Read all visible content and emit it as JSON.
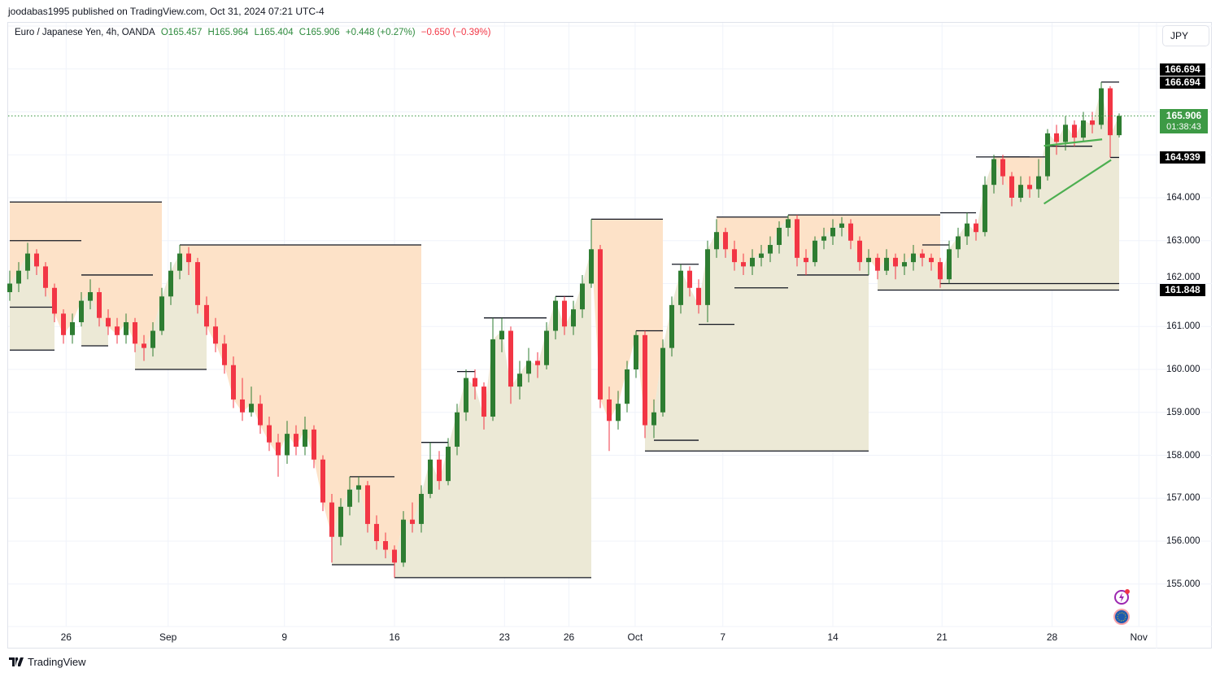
{
  "header": {
    "published": "joodabas1995 published on TradingView.com, Oct 31, 2024 07:21 UTC-4",
    "symbol": "Euro / Japanese Yen, 4h, OANDA",
    "open": "O165.457",
    "high": "H165.964",
    "low": "L165.404",
    "close": "C165.906",
    "change": "+0.448 (+0.27%)",
    "change2": "−0.650 (−0.39%)"
  },
  "currency_button": "JPY",
  "price_labels": {
    "high1": "166.694",
    "high2": "166.694",
    "last": "165.906",
    "countdown": "01:38:43",
    "low_a": "164.939",
    "low_b": "161.848"
  },
  "footer": {
    "brand": "TradingView"
  },
  "icons": [
    "lightning-icon",
    "eu-flag-icon",
    "tradingview-logo-icon"
  ],
  "colors": {
    "up": "#2e7d32",
    "down": "#f23645",
    "resistance_zone": "#fde2c8",
    "support_zone": "#ece9d6",
    "level_line": "#131722",
    "wedge": "#4caf50",
    "last_price": "#3d9a45"
  },
  "chart_data": {
    "type": "candlestick",
    "symbol": "EURJPY",
    "interval": "4h",
    "ylim": [
      154.5,
      168.5
    ],
    "y_ticks": [
      "155.000",
      "156.000",
      "157.000",
      "158.000",
      "159.000",
      "160.000",
      "161.000",
      "162.000",
      "163.000",
      "164.000"
    ],
    "x_ticks": [
      {
        "label": "26",
        "bar": 6.3
      },
      {
        "label": "Sep",
        "bar": 17.7
      },
      {
        "label": "9",
        "bar": 30.7
      },
      {
        "label": "16",
        "bar": 43
      },
      {
        "label": "23",
        "bar": 55.3
      },
      {
        "label": "26",
        "bar": 62.5
      },
      {
        "label": "Oct",
        "bar": 69.9
      },
      {
        "label": "7",
        "bar": 79.7
      },
      {
        "label": "14",
        "bar": 92
      },
      {
        "label": "21",
        "bar": 104.2
      },
      {
        "label": "28",
        "bar": 116.5
      },
      {
        "label": "Nov",
        "bar": 126.2
      }
    ],
    "grid": true,
    "last_price": 165.906,
    "candles_ohlc": [
      [
        161.8,
        162.3,
        161.6,
        162.0
      ],
      [
        162.0,
        162.5,
        161.8,
        162.3
      ],
      [
        162.3,
        162.95,
        162.1,
        162.7
      ],
      [
        162.7,
        162.8,
        162.2,
        162.4
      ],
      [
        162.4,
        162.5,
        161.7,
        161.9
      ],
      [
        161.9,
        162.0,
        161.1,
        161.3
      ],
      [
        161.3,
        161.4,
        160.6,
        160.8
      ],
      [
        160.8,
        161.3,
        160.6,
        161.1
      ],
      [
        161.1,
        161.8,
        161.0,
        161.6
      ],
      [
        161.6,
        162.1,
        161.4,
        161.8
      ],
      [
        161.8,
        161.9,
        161.0,
        161.2
      ],
      [
        161.2,
        161.4,
        160.8,
        161.0
      ],
      [
        161.0,
        161.2,
        160.6,
        160.8
      ],
      [
        160.8,
        161.3,
        160.6,
        161.1
      ],
      [
        161.1,
        161.2,
        160.4,
        160.6
      ],
      [
        160.6,
        160.8,
        160.2,
        160.5
      ],
      [
        160.5,
        161.1,
        160.3,
        160.9
      ],
      [
        160.9,
        161.9,
        160.8,
        161.7
      ],
      [
        161.7,
        162.5,
        161.5,
        162.3
      ],
      [
        162.3,
        162.9,
        162.1,
        162.7
      ],
      [
        162.7,
        162.85,
        162.2,
        162.5
      ],
      [
        162.5,
        162.6,
        161.3,
        161.5
      ],
      [
        161.5,
        161.7,
        160.8,
        161.0
      ],
      [
        161.0,
        161.2,
        160.4,
        160.6
      ],
      [
        160.6,
        160.8,
        159.9,
        160.1
      ],
      [
        160.1,
        160.3,
        159.1,
        159.3
      ],
      [
        159.3,
        159.8,
        158.8,
        159.0
      ],
      [
        159.0,
        159.6,
        158.9,
        159.2
      ],
      [
        159.2,
        159.4,
        158.5,
        158.7
      ],
      [
        158.7,
        158.9,
        158.1,
        158.3
      ],
      [
        158.3,
        158.5,
        157.5,
        158.0
      ],
      [
        158.0,
        158.8,
        157.8,
        158.5
      ],
      [
        158.5,
        158.7,
        158.0,
        158.2
      ],
      [
        158.2,
        158.9,
        158.0,
        158.6
      ],
      [
        158.6,
        158.7,
        157.7,
        157.9
      ],
      [
        157.9,
        158.0,
        156.7,
        156.9
      ],
      [
        156.9,
        157.1,
        155.5,
        156.1
      ],
      [
        156.1,
        157.0,
        155.9,
        156.8
      ],
      [
        156.8,
        157.5,
        156.6,
        157.2
      ],
      [
        157.2,
        157.5,
        156.9,
        157.3
      ],
      [
        157.3,
        157.4,
        156.2,
        156.4
      ],
      [
        156.4,
        156.6,
        155.8,
        156.0
      ],
      [
        156.0,
        156.2,
        155.6,
        155.8
      ],
      [
        155.8,
        155.9,
        155.15,
        155.5
      ],
      [
        155.5,
        156.7,
        155.4,
        156.5
      ],
      [
        156.5,
        156.9,
        156.2,
        156.4
      ],
      [
        156.4,
        157.3,
        156.2,
        157.1
      ],
      [
        157.1,
        158.3,
        157.0,
        157.9
      ],
      [
        157.9,
        158.1,
        157.2,
        157.4
      ],
      [
        157.4,
        158.4,
        157.3,
        158.2
      ],
      [
        158.2,
        159.2,
        158.0,
        159.0
      ],
      [
        159.0,
        160.0,
        158.8,
        159.8
      ],
      [
        159.8,
        160.0,
        159.3,
        159.6
      ],
      [
        159.6,
        159.7,
        158.6,
        158.9
      ],
      [
        158.9,
        161.2,
        158.8,
        160.7
      ],
      [
        160.7,
        161.2,
        160.4,
        160.9
      ],
      [
        160.9,
        161.0,
        159.2,
        159.6
      ],
      [
        159.6,
        160.2,
        159.3,
        159.9
      ],
      [
        159.9,
        160.5,
        159.7,
        160.2
      ],
      [
        160.2,
        160.4,
        159.8,
        160.1
      ],
      [
        160.1,
        161.1,
        160.0,
        160.9
      ],
      [
        160.9,
        161.7,
        160.7,
        161.6
      ],
      [
        161.6,
        161.7,
        160.8,
        161.0
      ],
      [
        161.0,
        161.6,
        160.8,
        161.4
      ],
      [
        161.4,
        162.2,
        161.2,
        162.0
      ],
      [
        162.0,
        163.5,
        161.9,
        162.8
      ],
      [
        162.8,
        162.9,
        159.1,
        159.3
      ],
      [
        159.3,
        159.6,
        158.1,
        158.8
      ],
      [
        158.8,
        159.5,
        158.6,
        159.2
      ],
      [
        159.2,
        160.2,
        159.0,
        160.0
      ],
      [
        160.0,
        160.9,
        159.8,
        160.8
      ],
      [
        160.8,
        160.9,
        158.4,
        158.7
      ],
      [
        158.7,
        159.3,
        158.4,
        159.0
      ],
      [
        159.0,
        160.7,
        158.9,
        160.5
      ],
      [
        160.5,
        161.7,
        160.3,
        161.5
      ],
      [
        161.5,
        162.45,
        161.3,
        162.3
      ],
      [
        162.3,
        162.4,
        161.7,
        161.9
      ],
      [
        161.9,
        162.1,
        161.3,
        161.5
      ],
      [
        161.5,
        163.0,
        161.1,
        162.8
      ],
      [
        162.8,
        163.5,
        162.6,
        163.2
      ],
      [
        163.2,
        163.3,
        162.6,
        162.8
      ],
      [
        162.8,
        163.0,
        162.3,
        162.5
      ],
      [
        162.5,
        162.7,
        162.2,
        162.4
      ],
      [
        162.4,
        162.8,
        162.2,
        162.6
      ],
      [
        162.6,
        162.9,
        162.4,
        162.7
      ],
      [
        162.7,
        163.1,
        162.5,
        162.9
      ],
      [
        162.9,
        163.45,
        162.7,
        163.3
      ],
      [
        163.3,
        163.6,
        163.1,
        163.5
      ],
      [
        163.5,
        163.6,
        162.4,
        162.6
      ],
      [
        162.6,
        162.8,
        162.2,
        162.5
      ],
      [
        162.5,
        163.1,
        162.4,
        163.0
      ],
      [
        163.0,
        163.3,
        162.8,
        163.1
      ],
      [
        163.1,
        163.5,
        162.9,
        163.3
      ],
      [
        163.3,
        163.55,
        163.1,
        163.4
      ],
      [
        163.4,
        163.5,
        162.8,
        163.0
      ],
      [
        163.0,
        163.1,
        162.3,
        162.5
      ],
      [
        162.5,
        162.8,
        162.2,
        162.6
      ],
      [
        162.6,
        162.7,
        162.1,
        162.3
      ],
      [
        162.3,
        162.8,
        162.2,
        162.6
      ],
      [
        162.6,
        162.7,
        162.1,
        162.4
      ],
      [
        162.4,
        162.7,
        162.2,
        162.5
      ],
      [
        162.5,
        162.9,
        162.3,
        162.7
      ],
      [
        162.7,
        162.8,
        162.4,
        162.6
      ],
      [
        162.6,
        162.7,
        162.3,
        162.5
      ],
      [
        162.5,
        162.6,
        161.9,
        162.1
      ],
      [
        162.1,
        163.0,
        162.0,
        162.8
      ],
      [
        162.8,
        163.3,
        162.6,
        163.1
      ],
      [
        163.1,
        163.65,
        162.9,
        163.4
      ],
      [
        163.4,
        163.5,
        163.0,
        163.2
      ],
      [
        163.2,
        164.5,
        163.1,
        164.3
      ],
      [
        164.3,
        165.0,
        164.1,
        164.9
      ],
      [
        164.9,
        165.0,
        164.3,
        164.5
      ],
      [
        164.5,
        164.6,
        163.8,
        164.0
      ],
      [
        164.0,
        164.5,
        163.9,
        164.3
      ],
      [
        164.3,
        164.5,
        164.0,
        164.2
      ],
      [
        164.2,
        164.9,
        164.0,
        164.5
      ],
      [
        164.5,
        165.6,
        164.4,
        165.5
      ],
      [
        165.5,
        165.7,
        165.0,
        165.3
      ],
      [
        165.3,
        165.9,
        165.1,
        165.7
      ],
      [
        165.7,
        165.8,
        165.2,
        165.4
      ],
      [
        165.4,
        166.0,
        165.3,
        165.8
      ],
      [
        165.8,
        166.0,
        165.5,
        165.7
      ],
      [
        165.7,
        166.694,
        165.6,
        166.55
      ],
      [
        166.55,
        166.6,
        164.939,
        165.457
      ],
      [
        165.457,
        165.964,
        165.404,
        165.906
      ]
    ],
    "resistance_zones": [
      {
        "from": 0,
        "to": 17,
        "price": 163.9
      },
      {
        "from": 19,
        "to": 46,
        "price": 162.9
      },
      {
        "from": 65,
        "to": 73,
        "price": 163.5
      },
      {
        "from": 79,
        "to": 87,
        "price": 163.55
      },
      {
        "from": 87,
        "to": 104,
        "price": 163.6
      },
      {
        "from": 110,
        "to": 116,
        "price": 164.95
      }
    ],
    "support_zones": [
      {
        "from": 0,
        "to": 5,
        "price": 160.45
      },
      {
        "from": 8,
        "to": 11,
        "price": 160.55
      },
      {
        "from": 14,
        "to": 22,
        "price": 160.0
      },
      {
        "from": 36,
        "to": 43,
        "price": 155.45
      },
      {
        "from": 43,
        "to": 65,
        "price": 155.15
      },
      {
        "from": 71,
        "to": 96,
        "price": 158.1
      },
      {
        "from": 72,
        "to": 77,
        "price": 158.35
      },
      {
        "from": 77,
        "to": 81,
        "price": 161.05
      },
      {
        "from": 81,
        "to": 87,
        "price": 161.9
      },
      {
        "from": 88,
        "to": 96,
        "price": 162.2
      },
      {
        "from": 97,
        "to": 124,
        "price": 161.848
      },
      {
        "from": 104,
        "to": 124,
        "price": 162.0
      },
      {
        "from": 123,
        "to": 124,
        "price": 164.939
      }
    ],
    "level_lines": [
      {
        "from": 0,
        "to": 8,
        "price": 163.0
      },
      {
        "from": 8,
        "to": 16,
        "price": 162.2
      },
      {
        "from": 0,
        "to": 5,
        "price": 161.45
      },
      {
        "from": 38,
        "to": 43,
        "price": 157.5
      },
      {
        "from": 46,
        "to": 49,
        "price": 158.3
      },
      {
        "from": 50,
        "to": 52,
        "price": 159.95
      },
      {
        "from": 53,
        "to": 60,
        "price": 161.2
      },
      {
        "from": 61,
        "to": 63,
        "price": 161.7
      },
      {
        "from": 70,
        "to": 73,
        "price": 160.9
      },
      {
        "from": 74,
        "to": 77,
        "price": 162.45
      },
      {
        "from": 104,
        "to": 108,
        "price": 163.65
      },
      {
        "from": 102,
        "to": 105,
        "price": 162.9
      },
      {
        "from": 108,
        "to": 114,
        "price": 164.95
      },
      {
        "from": 116,
        "to": 121,
        "price": 165.2
      },
      {
        "from": 122,
        "to": 124,
        "price": 166.694
      }
    ],
    "trend_lines": [
      {
        "from": 115.6,
        "to": 122.1,
        "p1": 165.21,
        "p2": 165.36
      },
      {
        "from": 115.6,
        "to": 123.1,
        "p1": 163.86,
        "p2": 164.88
      }
    ]
  }
}
